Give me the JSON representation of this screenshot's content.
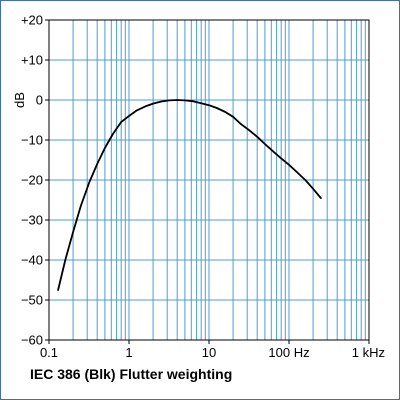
{
  "caption": "IEC 386 (Blk) Flutter weighting",
  "chart_data": {
    "type": "line",
    "title": "IEC 386 (Blk) Flutter weighting",
    "xlabel": "",
    "ylabel": "dB",
    "x_scale": "log",
    "xlim": [
      0.1,
      1000
    ],
    "ylim": [
      -60,
      20
    ],
    "x_ticks": [
      {
        "value": 0.1,
        "label": "0.1"
      },
      {
        "value": 1,
        "label": "1"
      },
      {
        "value": 10,
        "label": "10"
      },
      {
        "value": 100,
        "label": "100 Hz"
      },
      {
        "value": 1000,
        "label": "1 kHz"
      }
    ],
    "y_ticks": [
      {
        "value": 20,
        "label": "+20"
      },
      {
        "value": 10,
        "label": "+10"
      },
      {
        "value": 0,
        "label": "0"
      },
      {
        "value": -10,
        "label": "−10"
      },
      {
        "value": -20,
        "label": "−20"
      },
      {
        "value": -30,
        "label": "−30"
      },
      {
        "value": -40,
        "label": "−40"
      },
      {
        "value": -50,
        "label": "−50"
      },
      {
        "value": -60,
        "label": "−60"
      }
    ],
    "grid": true,
    "series": [
      {
        "x": [
          0.13,
          0.16,
          0.2,
          0.25,
          0.32,
          0.4,
          0.5,
          0.63,
          0.8,
          1,
          1.25,
          1.6,
          2,
          2.5,
          3.15,
          4,
          5,
          6.3,
          8,
          10,
          12.5,
          16,
          20,
          25,
          31.5,
          40,
          50,
          63,
          80,
          100,
          125,
          160,
          200,
          250
        ],
        "y": [
          -47.5,
          -40,
          -33,
          -26.5,
          -20.5,
          -16,
          -12,
          -8.5,
          -5.5,
          -4,
          -2.6,
          -1.6,
          -0.9,
          -0.4,
          -0.1,
          0,
          -0.1,
          -0.3,
          -0.8,
          -1.3,
          -2,
          -3,
          -4.2,
          -6,
          -7.5,
          -9.2,
          -11,
          -12.8,
          -14.6,
          -16.2,
          -18,
          -20,
          -22.2,
          -24.5
        ]
      }
    ],
    "colors": {
      "grid": "#4a9ed6",
      "curve": "#000000",
      "frame": "#3b6fb6"
    }
  }
}
